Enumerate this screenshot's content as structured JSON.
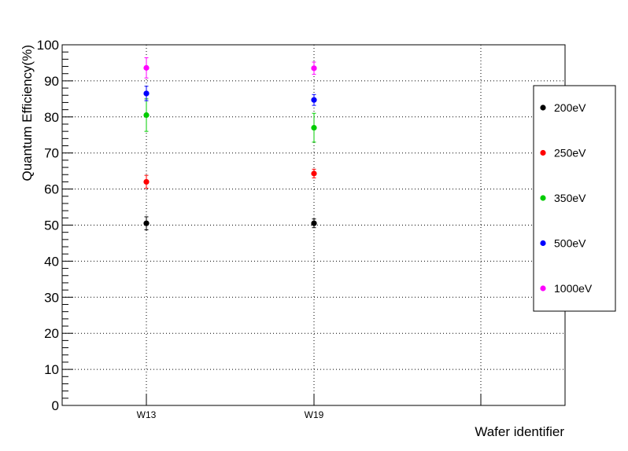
{
  "chart_data": {
    "type": "scatter",
    "xlabel": "Wafer identifier",
    "ylabel": "Quantum Efficiency(%)",
    "ylim": [
      0,
      100
    ],
    "y_ticks": [
      "0",
      "10",
      "20",
      "30",
      "40",
      "50",
      "60",
      "70",
      "80",
      "90",
      "100"
    ],
    "categories": [
      "W13",
      "W19",
      ""
    ],
    "grid": true,
    "legend_position": "right",
    "series": [
      {
        "name": "200eV",
        "color": "#000000",
        "values": [
          50.5,
          50.5
        ],
        "errors": [
          1.8,
          1.2
        ]
      },
      {
        "name": "250eV",
        "color": "#ff0000",
        "values": [
          62.0,
          64.3
        ],
        "errors": [
          1.8,
          1.2
        ]
      },
      {
        "name": "350eV",
        "color": "#00cc00",
        "values": [
          80.5,
          77.0
        ],
        "errors": [
          4.5,
          4.0
        ]
      },
      {
        "name": "500eV",
        "color": "#0000ff",
        "values": [
          86.5,
          84.7
        ],
        "errors": [
          2.0,
          1.5
        ]
      },
      {
        "name": "1000eV",
        "color": "#ff00ff",
        "values": [
          93.6,
          93.5
        ],
        "errors": [
          2.8,
          1.7
        ]
      }
    ]
  }
}
